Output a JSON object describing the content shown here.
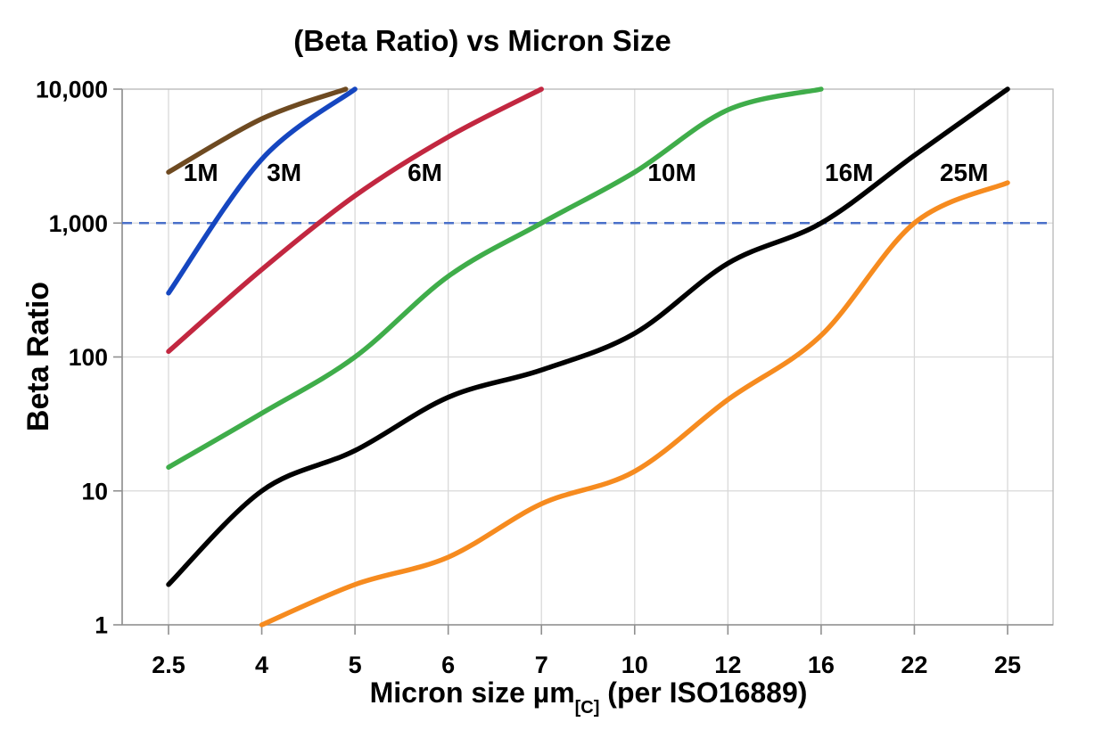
{
  "chart_data": {
    "type": "line",
    "title": "(Beta Ratio) vs Micron Size",
    "ylabel": "Beta Ratio",
    "xlabel": "Micron size µm[C] (per ISO16889)",
    "xlabel_parts": {
      "main": "Micron size µm",
      "sub": "[C]",
      "suffix": " (per ISO16889)"
    },
    "x_scale": "categorical",
    "x_ticks": [
      2.5,
      4,
      5,
      6,
      7,
      10,
      12,
      16,
      22,
      25
    ],
    "x_tick_labels": [
      "2.5",
      "4",
      "5",
      "6",
      "7",
      "10",
      "12",
      "16",
      "22",
      "25"
    ],
    "y_scale": "log",
    "ylim": [
      1,
      10000
    ],
    "y_ticks": [
      {
        "value": 10000,
        "label": "10,000"
      },
      {
        "value": 1000,
        "label": "1,000"
      },
      {
        "value": 100,
        "label": "100"
      },
      {
        "value": 10,
        "label": "10"
      },
      {
        "value": 1,
        "label": "1"
      }
    ],
    "grid": true,
    "grid_color": "#d9d9d9",
    "axis_color": "#8f8f8f",
    "border_color": "#b7b7b7",
    "threshold_line": {
      "value": 1000,
      "style": "dashed",
      "color": "#4a70c9"
    },
    "series": [
      {
        "name": "1M",
        "color": "#6e4a21",
        "label": {
          "x": 3.02,
          "y": 2400
        },
        "points": [
          [
            2.5,
            2400
          ],
          [
            4,
            6000
          ],
          [
            4.9,
            10000
          ]
        ]
      },
      {
        "name": "3M",
        "color": "#1546c0",
        "label": {
          "x": 4.24,
          "y": 2400
        },
        "points": [
          [
            2.5,
            300
          ],
          [
            4,
            3000
          ],
          [
            5,
            10000
          ]
        ]
      },
      {
        "name": "6M",
        "color": "#c22740",
        "label": {
          "x": 5.75,
          "y": 2400
        },
        "points": [
          [
            2.5,
            110
          ],
          [
            4,
            450
          ],
          [
            5,
            1600
          ],
          [
            6,
            4400
          ],
          [
            7,
            10000
          ]
        ]
      },
      {
        "name": "10M",
        "color": "#3fad4a",
        "label": {
          "x": 10.8,
          "y": 2400
        },
        "points": [
          [
            2.5,
            15
          ],
          [
            4,
            38
          ],
          [
            5,
            100
          ],
          [
            6,
            400
          ],
          [
            7,
            1000
          ],
          [
            10,
            2400
          ],
          [
            12,
            7000
          ],
          [
            16,
            10000
          ]
        ]
      },
      {
        "name": "16M",
        "color": "#000000",
        "label": {
          "x": 17.8,
          "y": 2400
        },
        "points": [
          [
            2.5,
            2
          ],
          [
            4,
            10
          ],
          [
            5,
            20
          ],
          [
            6,
            50
          ],
          [
            7,
            80
          ],
          [
            10,
            150
          ],
          [
            12,
            500
          ],
          [
            16,
            1000
          ],
          [
            22,
            3200
          ],
          [
            25,
            10000
          ]
        ]
      },
      {
        "name": "25M",
        "color": "#f68b1f",
        "label": {
          "x": 23.6,
          "y": 2400
        },
        "points": [
          [
            4,
            1
          ],
          [
            5,
            2
          ],
          [
            6,
            3.2
          ],
          [
            7,
            8
          ],
          [
            10,
            14
          ],
          [
            12,
            48
          ],
          [
            16,
            145
          ],
          [
            22,
            1000
          ],
          [
            25,
            2000
          ]
        ]
      }
    ]
  }
}
